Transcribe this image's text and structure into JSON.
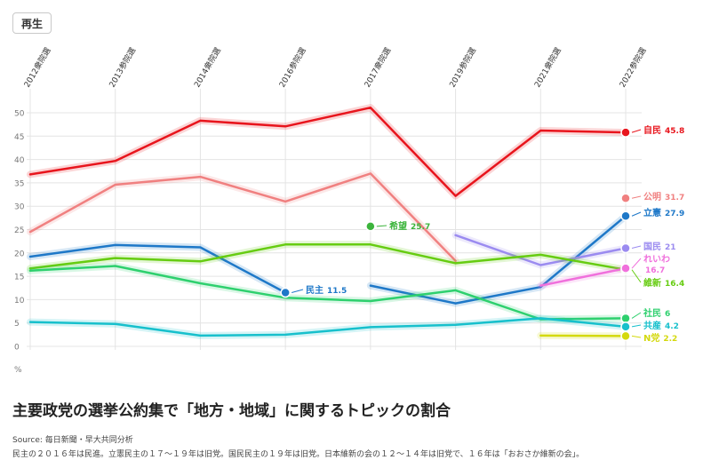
{
  "ui": {
    "replay_label": "再生"
  },
  "caption": {
    "title": "主要政党の選挙公約集で「地方・地域」に関するトピックの割合",
    "source": "Source: 毎日新聞・早大共同分析",
    "note": "民主の２０１６年は民進。立憲民主の１７～１９年は旧党。国民民主の１９年は旧党。日本維新の会の１２～１４年は旧党で、１６年は「おおさか維新の会」。"
  },
  "chart_data": {
    "type": "line",
    "categories": [
      "2012衆院選",
      "2013参院選",
      "2014衆院選",
      "2016参院選",
      "2017衆院選",
      "2019参院選",
      "2021衆院選",
      "2022参院選"
    ],
    "yunit": "%",
    "ylim": [
      0,
      50
    ],
    "yticks": [
      0,
      5,
      10,
      15,
      20,
      25,
      30,
      35,
      40,
      45,
      50
    ],
    "grid": true,
    "series": [
      {
        "name": "自民",
        "label": "45.8",
        "color": "#e8151d",
        "values": [
          36.8,
          39.7,
          48.3,
          47.1,
          51.1,
          32.2,
          46.2,
          45.8
        ]
      },
      {
        "name": "公明",
        "label": "31.7",
        "color": "#f08080",
        "values": [
          24.5,
          34.6,
          36.3,
          31.0,
          37.0,
          18.3,
          null,
          31.7
        ]
      },
      {
        "name": "民主",
        "label": "11.5",
        "color": "#1e78c8",
        "values": [
          19.2,
          21.7,
          21.2,
          11.5,
          null,
          null,
          null,
          null
        ]
      },
      {
        "name": "立憲",
        "label": "27.9",
        "color": "#1e78c8",
        "values": [
          null,
          null,
          null,
          null,
          13.0,
          9.2,
          12.7,
          27.9
        ]
      },
      {
        "name": "希望",
        "label": "25.7",
        "color": "#3cb43c",
        "values": [
          null,
          null,
          null,
          null,
          25.7,
          null,
          null,
          null
        ]
      },
      {
        "name": "国民",
        "label": "21",
        "color": "#9b8bf0",
        "values": [
          null,
          null,
          null,
          null,
          null,
          23.8,
          17.4,
          21.0
        ]
      },
      {
        "name": "維新",
        "label": "16.4",
        "color": "#66cc11",
        "values": [
          16.7,
          18.9,
          18.2,
          21.8,
          21.8,
          17.8,
          19.6,
          16.4
        ]
      },
      {
        "name": "れいわ",
        "label": "16.7",
        "color": "#f070dc",
        "values": [
          null,
          null,
          null,
          null,
          null,
          null,
          13.0,
          16.7
        ]
      },
      {
        "name": "社民",
        "label": "6",
        "color": "#2ed06e",
        "values": [
          16.2,
          17.2,
          13.5,
          10.4,
          9.7,
          12.0,
          5.8,
          6.0
        ]
      },
      {
        "name": "共産",
        "label": "4.2",
        "color": "#17c0cc",
        "values": [
          5.2,
          4.8,
          2.3,
          2.5,
          4.1,
          4.6,
          6.0,
          4.2
        ]
      },
      {
        "name": "N党",
        "label": "2.2",
        "color": "#d4d90e",
        "values": [
          null,
          null,
          null,
          null,
          null,
          null,
          2.3,
          2.2
        ]
      }
    ]
  }
}
